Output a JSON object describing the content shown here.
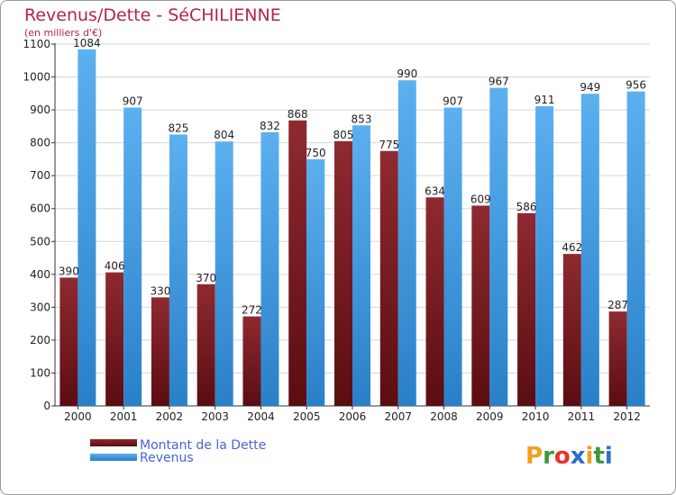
{
  "chart_data": {
    "type": "bar",
    "title": "Revenus/Dette - SéCHILIENNE",
    "subtitle": "(en milliers d'€)",
    "categories": [
      "2000",
      "2001",
      "2002",
      "2003",
      "2004",
      "2005",
      "2006",
      "2007",
      "2008",
      "2009",
      "2010",
      "2011",
      "2012"
    ],
    "series": [
      {
        "name": "Montant de la Dette",
        "color": "#7a1a1e",
        "values": [
          390,
          406,
          330,
          370,
          272,
          868,
          805,
          775,
          634,
          609,
          586,
          462,
          287
        ]
      },
      {
        "name": "Revenus",
        "color": "#4aa0e6",
        "values": [
          1084,
          907,
          825,
          804,
          832,
          750,
          853,
          990,
          907,
          967,
          911,
          949,
          956
        ]
      }
    ],
    "ylim": [
      0,
      1100
    ],
    "yticks": [
      0,
      100,
      200,
      300,
      400,
      500,
      600,
      700,
      800,
      900,
      1000,
      1100
    ],
    "grid": true,
    "legend_position": "bottom-left"
  },
  "logo": {
    "letters": [
      "P",
      "r",
      "o",
      "x",
      "i",
      "t",
      "i"
    ],
    "colors": [
      "#f0a020",
      "#3a9a3a",
      "#e8332a",
      "#2a6fd0",
      "#f0a020",
      "#3a9a3a",
      "#2a6fd0"
    ]
  }
}
